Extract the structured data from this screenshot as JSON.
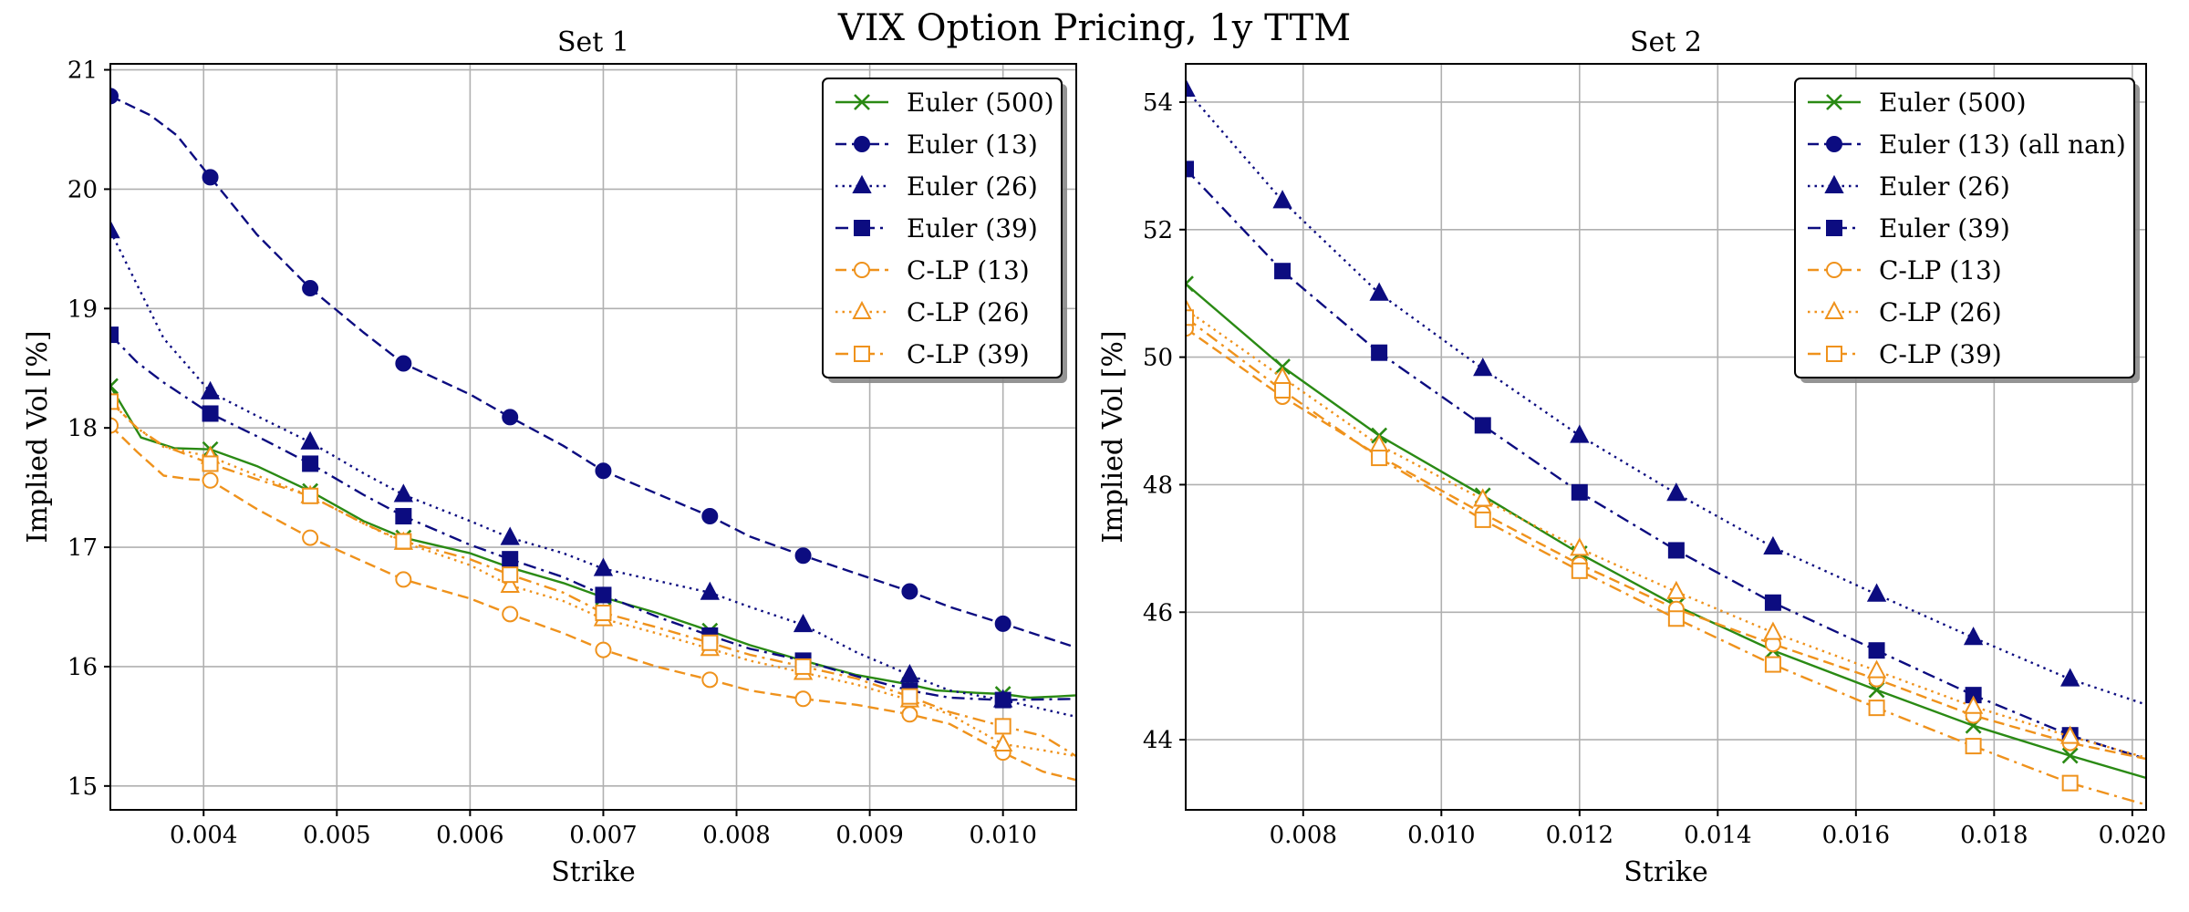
{
  "figure": {
    "suptitle": "VIX Option Pricing, 1y TTM"
  },
  "colors": {
    "green": "#2a8a14",
    "navy": "#0c0c80",
    "orange": "#ef921c"
  },
  "chart_data": [
    {
      "type": "line",
      "title": "Set 1",
      "xlabel": "Strike",
      "ylabel": "Implied Vol [%]",
      "xlim": [
        0.0033,
        0.01055
      ],
      "ylim": [
        14.8,
        21.05
      ],
      "xticks": [
        0.004,
        0.005,
        0.006,
        0.007,
        0.008,
        0.009,
        0.01
      ],
      "xtick_labels": [
        "0.004",
        "0.005",
        "0.006",
        "0.007",
        "0.008",
        "0.009",
        "0.010"
      ],
      "yticks": [
        15,
        16,
        17,
        18,
        19,
        20,
        21
      ],
      "ytick_labels": [
        "15",
        "16",
        "17",
        "18",
        "19",
        "20",
        "21"
      ],
      "legend_position": "top-right",
      "series": [
        {
          "name": "Euler (500)",
          "color": "green",
          "linestyle": "solid",
          "marker": "x",
          "marker_fill": "none",
          "x": [
            0.0033,
            0.00353,
            0.00378,
            0.00405,
            0.0044,
            0.0048,
            0.0052,
            0.0055,
            0.006,
            0.0063,
            0.0067,
            0.007,
            0.0074,
            0.0078,
            0.0081,
            0.0085,
            0.0089,
            0.0093,
            0.0095,
            0.0098,
            0.01,
            0.0102,
            0.0104,
            0.01055
          ],
          "y": [
            18.35,
            17.92,
            17.83,
            17.82,
            17.68,
            17.47,
            17.22,
            17.08,
            16.95,
            16.83,
            16.7,
            16.58,
            16.45,
            16.3,
            16.18,
            16.05,
            15.93,
            15.85,
            15.8,
            15.78,
            15.77,
            15.74,
            15.75,
            15.76
          ],
          "marker_x": [
            0.0033,
            0.00405,
            0.0048,
            0.0055,
            0.0063,
            0.007,
            0.0078,
            0.0085,
            0.0093,
            0.01
          ]
        },
        {
          "name": "Euler (13)",
          "color": "navy",
          "linestyle": "dashed",
          "marker": "circle",
          "marker_fill": "filled",
          "x": [
            0.0033,
            0.0036,
            0.0038,
            0.00405,
            0.0044,
            0.0048,
            0.0052,
            0.0055,
            0.006,
            0.0063,
            0.0067,
            0.007,
            0.0074,
            0.0078,
            0.0081,
            0.0085,
            0.0089,
            0.0093,
            0.0096,
            0.01,
            0.01055
          ],
          "y": [
            20.78,
            20.62,
            20.45,
            20.1,
            19.62,
            19.17,
            18.8,
            18.54,
            18.28,
            18.09,
            17.85,
            17.64,
            17.45,
            17.26,
            17.09,
            16.93,
            16.78,
            16.63,
            16.5,
            16.36,
            16.16
          ],
          "marker_x": [
            0.0033,
            0.00405,
            0.0048,
            0.0055,
            0.0063,
            0.007,
            0.0078,
            0.0085,
            0.0093,
            0.01
          ]
        },
        {
          "name": "Euler (26)",
          "color": "navy",
          "linestyle": "dotted",
          "marker": "triangle",
          "marker_fill": "filled",
          "x": [
            0.0033,
            0.0035,
            0.0037,
            0.00405,
            0.0044,
            0.0048,
            0.0052,
            0.0055,
            0.006,
            0.0063,
            0.0067,
            0.007,
            0.0074,
            0.0078,
            0.0081,
            0.0085,
            0.0089,
            0.0093,
            0.0096,
            0.01,
            0.01055
          ],
          "y": [
            19.65,
            19.2,
            18.75,
            18.3,
            18.1,
            17.88,
            17.62,
            17.44,
            17.22,
            17.08,
            16.95,
            16.82,
            16.72,
            16.62,
            16.5,
            16.35,
            16.12,
            15.93,
            15.8,
            15.72,
            15.58
          ],
          "marker_x": [
            0.0033,
            0.00405,
            0.0048,
            0.0055,
            0.0063,
            0.007,
            0.0078,
            0.0085,
            0.0093,
            0.01
          ]
        },
        {
          "name": "Euler (39)",
          "color": "navy",
          "linestyle": "dashdot",
          "marker": "square",
          "marker_fill": "filled",
          "x": [
            0.0033,
            0.0035,
            0.0037,
            0.00405,
            0.0044,
            0.0048,
            0.0052,
            0.0055,
            0.006,
            0.0063,
            0.0067,
            0.007,
            0.0074,
            0.0078,
            0.0081,
            0.0085,
            0.0089,
            0.0093,
            0.0096,
            0.01,
            0.01055
          ],
          "y": [
            18.78,
            18.55,
            18.38,
            18.12,
            17.93,
            17.7,
            17.44,
            17.26,
            17.02,
            16.9,
            16.75,
            16.6,
            16.42,
            16.26,
            16.15,
            16.05,
            15.92,
            15.8,
            15.74,
            15.72,
            15.73
          ],
          "marker_x": [
            0.0033,
            0.00405,
            0.0048,
            0.0055,
            0.0063,
            0.007,
            0.0078,
            0.0085,
            0.0093,
            0.01
          ]
        },
        {
          "name": "C-LP (13)",
          "color": "orange",
          "linestyle": "dashed",
          "marker": "circle",
          "marker_fill": "hollow",
          "x": [
            0.0033,
            0.0035,
            0.0037,
            0.0039,
            0.00405,
            0.0044,
            0.0048,
            0.0052,
            0.0055,
            0.006,
            0.0063,
            0.0067,
            0.007,
            0.0074,
            0.0078,
            0.0081,
            0.0085,
            0.0089,
            0.0093,
            0.0096,
            0.01,
            0.0103,
            0.01055
          ],
          "y": [
            18.02,
            17.8,
            17.6,
            17.57,
            17.56,
            17.32,
            17.08,
            16.88,
            16.73,
            16.57,
            16.44,
            16.28,
            16.14,
            16.0,
            15.89,
            15.8,
            15.73,
            15.68,
            15.6,
            15.52,
            15.28,
            15.12,
            15.05
          ],
          "marker_x": [
            0.0033,
            0.00405,
            0.0048,
            0.0055,
            0.0063,
            0.007,
            0.0078,
            0.0085,
            0.0093,
            0.01
          ]
        },
        {
          "name": "C-LP (26)",
          "color": "orange",
          "linestyle": "dotted",
          "marker": "triangle",
          "marker_fill": "hollow",
          "x": [
            0.0033,
            0.0035,
            0.0037,
            0.00405,
            0.0044,
            0.0048,
            0.0052,
            0.0055,
            0.006,
            0.0063,
            0.0067,
            0.007,
            0.0074,
            0.0078,
            0.0081,
            0.0085,
            0.0089,
            0.0093,
            0.0096,
            0.01,
            0.0103,
            0.01055
          ],
          "y": [
            18.22,
            18.0,
            17.84,
            17.76,
            17.6,
            17.43,
            17.2,
            17.04,
            16.85,
            16.68,
            16.55,
            16.4,
            16.28,
            16.15,
            16.05,
            15.95,
            15.85,
            15.72,
            15.6,
            15.35,
            15.3,
            15.25
          ],
          "marker_x": [
            0.0033,
            0.00405,
            0.0048,
            0.0055,
            0.0063,
            0.007,
            0.0078,
            0.0085,
            0.0093,
            0.01
          ]
        },
        {
          "name": "C-LP (39)",
          "color": "orange",
          "linestyle": "dashdot",
          "marker": "square",
          "marker_fill": "hollow",
          "x": [
            0.0033,
            0.0035,
            0.0037,
            0.00405,
            0.0044,
            0.0048,
            0.0052,
            0.0055,
            0.006,
            0.0063,
            0.0067,
            0.007,
            0.0074,
            0.0078,
            0.0081,
            0.0085,
            0.0089,
            0.0093,
            0.0096,
            0.01,
            0.0103,
            0.01055
          ],
          "y": [
            18.22,
            18.0,
            17.85,
            17.7,
            17.57,
            17.43,
            17.2,
            17.05,
            16.9,
            16.77,
            16.62,
            16.45,
            16.33,
            16.2,
            16.1,
            16.0,
            15.9,
            15.75,
            15.62,
            15.5,
            15.42,
            15.25
          ],
          "marker_x": [
            0.0033,
            0.00405,
            0.0048,
            0.0055,
            0.0063,
            0.007,
            0.0078,
            0.0085,
            0.0093,
            0.01
          ]
        }
      ]
    },
    {
      "type": "line",
      "title": "Set 2",
      "xlabel": "Strike",
      "ylabel": "Implied Vol [%]",
      "xlim": [
        0.0063,
        0.0202
      ],
      "ylim": [
        42.9,
        54.6
      ],
      "xticks": [
        0.008,
        0.01,
        0.012,
        0.014,
        0.016,
        0.018,
        0.02
      ],
      "xtick_labels": [
        "0.008",
        "0.010",
        "0.012",
        "0.014",
        "0.016",
        "0.018",
        "0.020"
      ],
      "yticks": [
        44,
        46,
        48,
        50,
        52,
        54
      ],
      "ytick_labels": [
        "44",
        "46",
        "48",
        "50",
        "52",
        "54"
      ],
      "legend_position": "top-right",
      "series": [
        {
          "name": "Euler (500)",
          "color": "green",
          "linestyle": "solid",
          "marker": "x",
          "marker_fill": "none",
          "x": [
            0.0063,
            0.0077,
            0.0091,
            0.0106,
            0.012,
            0.0134,
            0.0148,
            0.0163,
            0.0177,
            0.0191,
            0.0202
          ],
          "y": [
            51.15,
            49.85,
            48.77,
            47.83,
            46.92,
            46.1,
            45.4,
            44.78,
            44.22,
            43.75,
            43.4
          ],
          "marker_x": [
            0.0063,
            0.0077,
            0.0091,
            0.0106,
            0.012,
            0.0134,
            0.0148,
            0.0163,
            0.0177,
            0.0191
          ]
        },
        {
          "name": "Euler (13) (all nan)",
          "color": "navy",
          "linestyle": "dashed",
          "marker": "circle",
          "marker_fill": "filled",
          "x": [],
          "y": [],
          "marker_x": []
        },
        {
          "name": "Euler (26)",
          "color": "navy",
          "linestyle": "dotted",
          "marker": "triangle",
          "marker_fill": "filled",
          "x": [
            0.0063,
            0.0077,
            0.0091,
            0.0106,
            0.012,
            0.0134,
            0.0148,
            0.0163,
            0.0177,
            0.0191,
            0.0202
          ],
          "y": [
            54.2,
            52.45,
            51.0,
            49.82,
            48.77,
            47.86,
            47.02,
            46.28,
            45.6,
            44.95,
            44.55
          ],
          "marker_x": [
            0.0063,
            0.0077,
            0.0091,
            0.0106,
            0.012,
            0.0134,
            0.0148,
            0.0163,
            0.0177,
            0.0191
          ]
        },
        {
          "name": "Euler (39)",
          "color": "navy",
          "linestyle": "dashdot",
          "marker": "square",
          "marker_fill": "filled",
          "x": [
            0.0063,
            0.0077,
            0.0091,
            0.0106,
            0.012,
            0.0134,
            0.0148,
            0.0163,
            0.0177,
            0.0191,
            0.0202
          ],
          "y": [
            52.95,
            51.35,
            50.07,
            48.93,
            47.88,
            46.97,
            46.15,
            45.4,
            44.7,
            44.07,
            43.7
          ],
          "marker_x": [
            0.0063,
            0.0077,
            0.0091,
            0.0106,
            0.012,
            0.0134,
            0.0148,
            0.0163,
            0.0177,
            0.0191
          ]
        },
        {
          "name": "C-LP (13)",
          "color": "orange",
          "linestyle": "dashed",
          "marker": "circle",
          "marker_fill": "hollow",
          "x": [
            0.0063,
            0.0077,
            0.0091,
            0.0106,
            0.012,
            0.0134,
            0.0148,
            0.0163,
            0.0177,
            0.0191,
            0.0202
          ],
          "y": [
            50.45,
            49.38,
            48.45,
            47.55,
            46.75,
            46.05,
            45.5,
            44.95,
            44.38,
            43.95,
            43.7
          ],
          "marker_x": [
            0.0063,
            0.0077,
            0.0091,
            0.0106,
            0.012,
            0.0134,
            0.0148,
            0.0163,
            0.0177,
            0.0191
          ]
        },
        {
          "name": "C-LP (26)",
          "color": "orange",
          "linestyle": "dotted",
          "marker": "triangle",
          "marker_fill": "hollow",
          "x": [
            0.0063,
            0.0077,
            0.0091,
            0.0106,
            0.012,
            0.0134,
            0.0148,
            0.0163,
            0.0177,
            0.0191,
            0.0202
          ],
          "y": [
            50.75,
            49.68,
            48.62,
            47.77,
            47.0,
            46.32,
            45.68,
            45.08,
            44.52,
            44.05,
            43.72
          ],
          "marker_x": [
            0.0063,
            0.0077,
            0.0091,
            0.0106,
            0.012,
            0.0134,
            0.0148,
            0.0163,
            0.0177,
            0.0191
          ]
        },
        {
          "name": "C-LP (39)",
          "color": "orange",
          "linestyle": "dashdot",
          "marker": "square",
          "marker_fill": "hollow",
          "x": [
            0.0063,
            0.0077,
            0.0091,
            0.0106,
            0.012,
            0.0134,
            0.0148,
            0.0163,
            0.0177,
            0.0191,
            0.0202
          ],
          "y": [
            50.62,
            49.48,
            48.42,
            47.45,
            46.65,
            45.9,
            45.18,
            44.5,
            43.9,
            43.32,
            42.98
          ],
          "marker_x": [
            0.0063,
            0.0077,
            0.0091,
            0.0106,
            0.012,
            0.0134,
            0.0148,
            0.0163,
            0.0177,
            0.0191
          ]
        }
      ]
    }
  ]
}
